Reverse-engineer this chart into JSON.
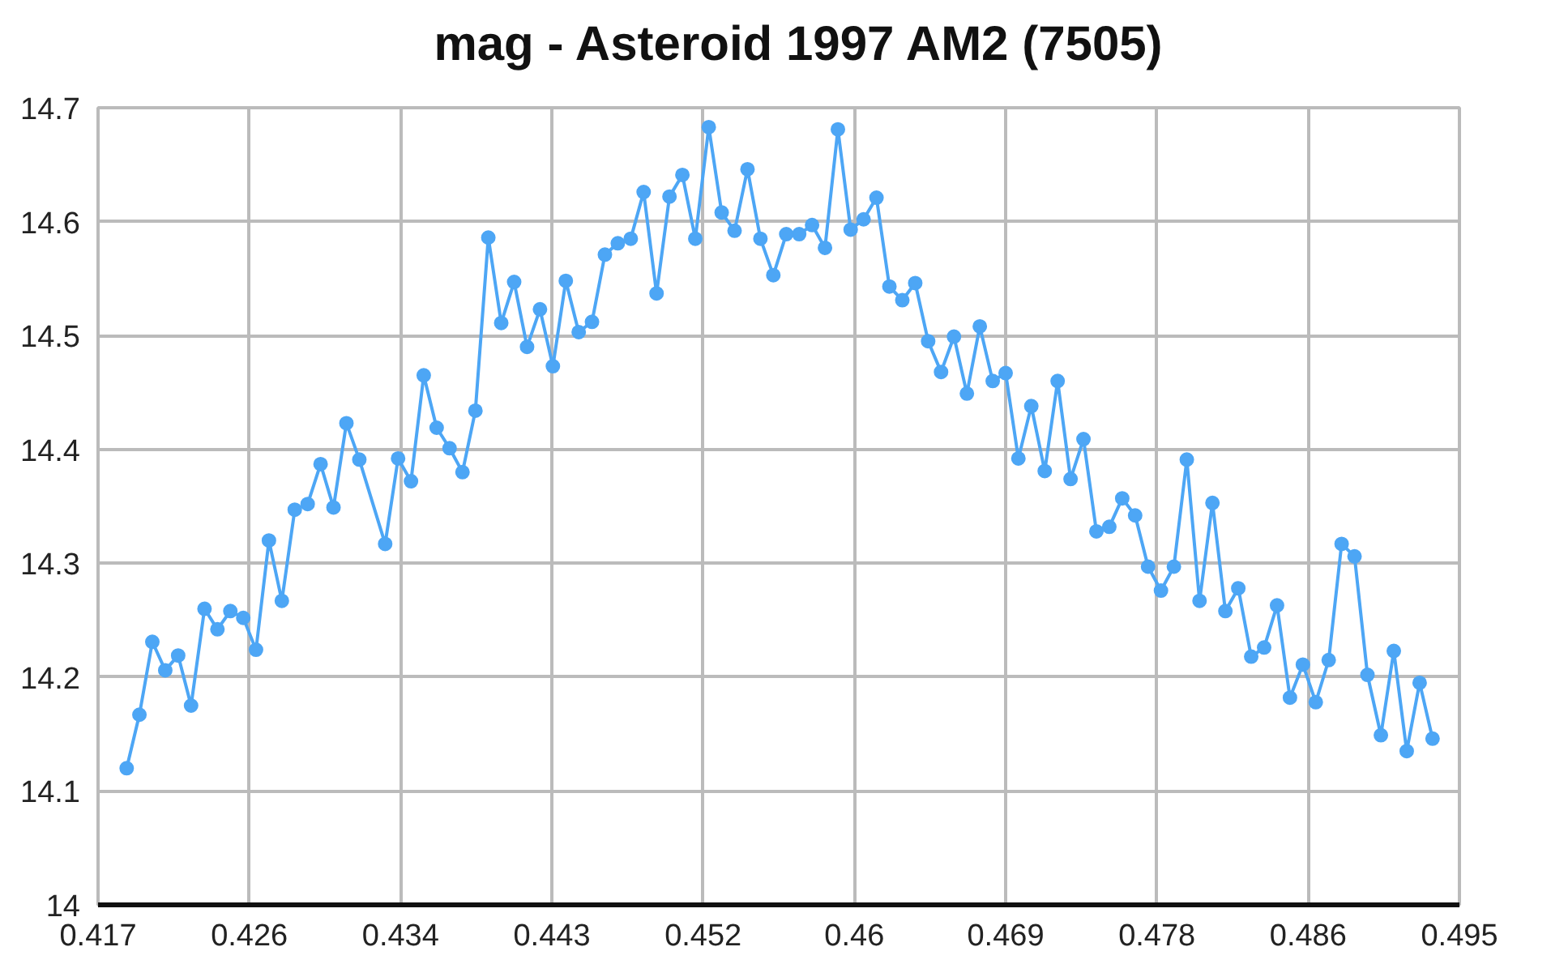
{
  "chart_data": {
    "type": "line",
    "x": [
      0.41864,
      0.41937,
      0.42011,
      0.42085,
      0.42159,
      0.42233,
      0.4231,
      0.42384,
      0.42458,
      0.42532,
      0.42605,
      0.42679,
      0.42753,
      0.42827,
      0.42901,
      0.42975,
      0.43049,
      0.43123,
      0.43197,
      0.43345,
      0.43419,
      0.43493,
      0.43566,
      0.4364,
      0.43714,
      0.43788,
      0.43862,
      0.43936,
      0.4401,
      0.44084,
      0.44158,
      0.44232,
      0.44306,
      0.4438,
      0.44454,
      0.4453,
      0.44604,
      0.44678,
      0.44752,
      0.44826,
      0.449,
      0.44974,
      0.45048,
      0.45122,
      0.45199,
      0.45273,
      0.45347,
      0.45421,
      0.45495,
      0.45569,
      0.45643,
      0.45717,
      0.45791,
      0.45865,
      0.45939,
      0.46012,
      0.46086,
      0.4616,
      0.46234,
      0.46308,
      0.46382,
      0.46456,
      0.4653,
      0.46604,
      0.46678,
      0.46752,
      0.46826,
      0.469,
      0.46973,
      0.47047,
      0.47124,
      0.47198,
      0.47272,
      0.47346,
      0.4742,
      0.47494,
      0.47568,
      0.47642,
      0.47716,
      0.4779,
      0.47864,
      0.47938,
      0.48011,
      0.48085,
      0.48159,
      0.48233,
      0.48307,
      0.48381,
      0.48455,
      0.48529,
      0.48603,
      0.48677,
      0.48751,
      0.48825,
      0.48899,
      0.48973,
      0.4905,
      0.49124,
      0.49198,
      0.49272,
      0.49346
    ],
    "series": [
      {
        "name": "mag - Asteroid 1997 AM2 (7505)",
        "color": "#4da6f5",
        "values": [
          14.12,
          14.167,
          14.231,
          14.206,
          14.219,
          14.175,
          14.26,
          14.242,
          14.258,
          14.252,
          14.224,
          14.32,
          14.267,
          14.347,
          14.352,
          14.387,
          14.349,
          14.423,
          14.391,
          14.317,
          14.392,
          14.372,
          14.465,
          14.419,
          14.401,
          14.38,
          14.434,
          14.586,
          14.511,
          14.547,
          14.49,
          14.523,
          14.473,
          14.548,
          14.503,
          14.512,
          14.571,
          14.581,
          14.585,
          14.626,
          14.537,
          14.622,
          14.641,
          14.585,
          14.683,
          14.608,
          14.592,
          14.646,
          14.585,
          14.553,
          14.589,
          14.589,
          14.597,
          14.577,
          14.681,
          14.593,
          14.602,
          14.621,
          14.543,
          14.531,
          14.546,
          14.495,
          14.468,
          14.499,
          14.449,
          14.508,
          14.46,
          14.467,
          14.392,
          14.438,
          14.381,
          14.46,
          14.374,
          14.409,
          14.328,
          14.332,
          14.357,
          14.342,
          14.297,
          14.276,
          14.297,
          14.391,
          14.267,
          14.353,
          14.258,
          14.278,
          14.218,
          14.226,
          14.263,
          14.182,
          14.211,
          14.178,
          14.215,
          14.317,
          14.306,
          14.202,
          14.149,
          14.223,
          14.135,
          14.195,
          14.146
        ]
      }
    ],
    "xlim": [
      0.417,
      0.495
    ],
    "xticks": [
      {
        "value": 0.417,
        "label": "0.417"
      },
      {
        "value": 0.425667,
        "label": "0.426"
      },
      {
        "value": 0.434333,
        "label": "0.434"
      },
      {
        "value": 0.443,
        "label": "0.443"
      },
      {
        "value": 0.451667,
        "label": "0.452"
      },
      {
        "value": 0.460333,
        "label": "0.46"
      },
      {
        "value": 0.469,
        "label": "0.469"
      },
      {
        "value": 0.477667,
        "label": "0.478"
      },
      {
        "value": 0.486333,
        "label": "0.486"
      },
      {
        "value": 0.495,
        "label": "0.495"
      }
    ],
    "ylim": [
      14,
      14.7
    ],
    "yticks": [
      14,
      14.1,
      14.2,
      14.3,
      14.4,
      14.5,
      14.6,
      14.7
    ],
    "grid": true,
    "legend": "top",
    "marker": "circle",
    "line_style": "solid"
  }
}
